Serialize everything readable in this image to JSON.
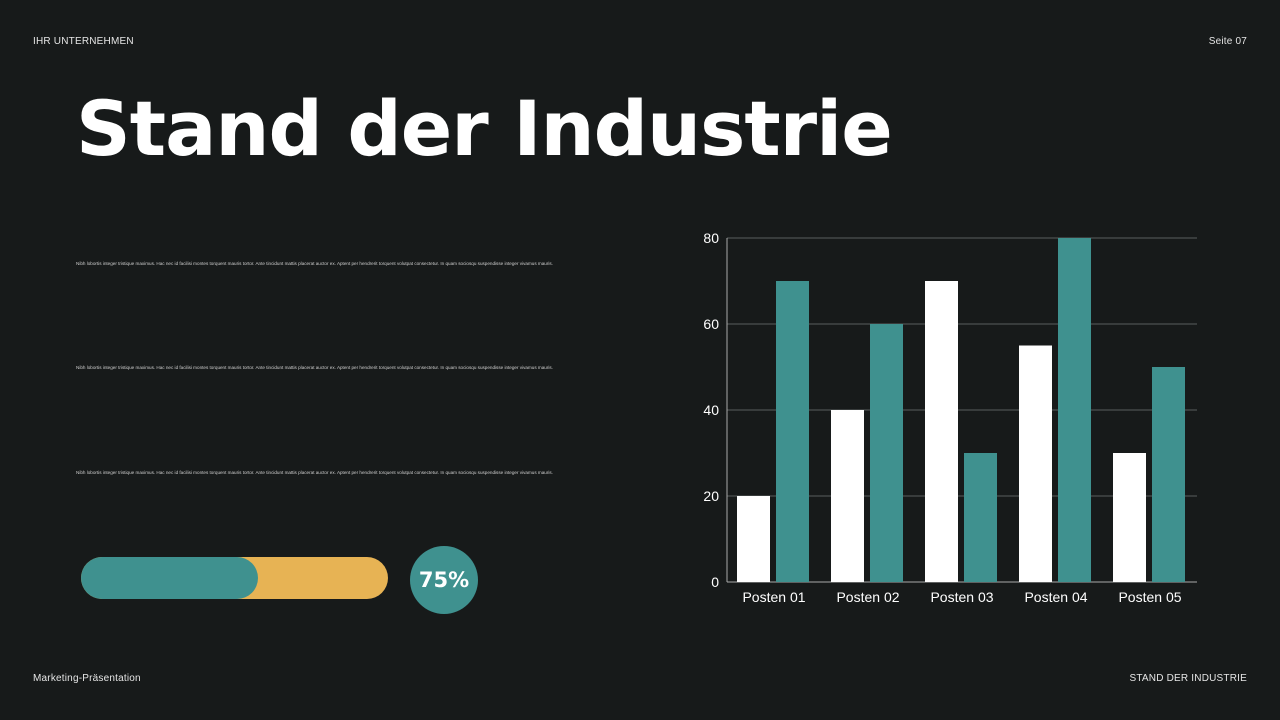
{
  "header": {
    "company": "IHR UNTERNEHMEN",
    "page": "Seite 07"
  },
  "title": "Stand der Industrie",
  "paragraphs": [
    "Nibh lobortis integer tristique maximus. Hac nec id facilisi montes torquent mauris tortor. Ante tincidunt mattis placerat auctor ex. Aptent per hendrerit torquent volutpat consectetur. In quam sociosqu suspendisse integer vivamus mauris.",
    "Nibh lobortis integer tristique maximus. Hac nec id facilisi montes torquent mauris tortor. Ante tincidunt mattis placerat auctor ex. Aptent per hendrerit torquent volutpat consectetur. In quam sociosqu suspendisse integer vivamus mauris.",
    "Nibh lobortis integer tristique maximus. Hac nec id facilisi montes torquent mauris tortor. Ante tincidunt mattis placerat auctor ex. Aptent per hendrerit torquent volutpat consectetur. In quam sociosqu suspendisse integer vivamus mauris."
  ],
  "progress": {
    "value": 75,
    "label": "75%",
    "colors": {
      "fill": "#3f918f",
      "track": "#e7b354"
    }
  },
  "footer": {
    "left": "Marketing-Präsentation",
    "right": "STAND DER INDUSTRIE"
  },
  "chart_data": {
    "type": "bar",
    "categories": [
      "Posten 01",
      "Posten 02",
      "Posten 03",
      "Posten 04",
      "Posten 05"
    ],
    "series": [
      {
        "values": [
          20,
          40,
          70,
          55,
          30
        ],
        "color": "#ffffff"
      },
      {
        "values": [
          70,
          60,
          30,
          80,
          50
        ],
        "color": "#3f918f"
      }
    ],
    "ylim": [
      0,
      80
    ],
    "yticks": [
      0,
      20,
      40,
      60,
      80
    ],
    "grid": true,
    "legend": "none"
  }
}
